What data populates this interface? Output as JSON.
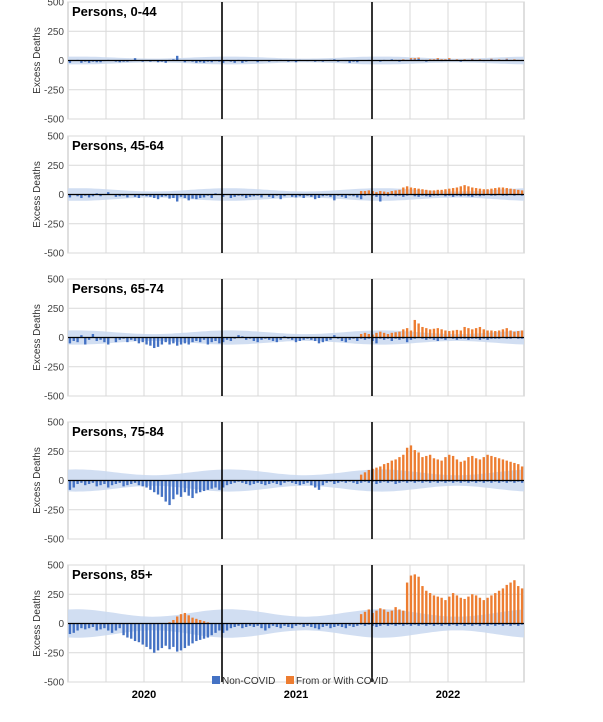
{
  "chart_data": {
    "type": "bar",
    "stacked": true,
    "ylabel": "Excess Deaths",
    "ylim": [
      -500,
      500
    ],
    "yticks": [
      -500,
      -250,
      0,
      250,
      500
    ],
    "x_years": [
      "2020",
      "2021",
      "2022"
    ],
    "grid": true,
    "legend_position": "bottom-center",
    "colors": {
      "non_covid": "#4472c4",
      "covid": "#ed7d31",
      "band": "#c9d8f0",
      "grid": "#d9d9d9"
    },
    "legend": [
      "Non-COVID",
      "From or With COVID"
    ],
    "weeks": 119,
    "panels": [
      {
        "title": "Persons, 0-44",
        "non_covid": [
          -20,
          0,
          5,
          -20,
          -10,
          -20,
          -10,
          -15,
          -15,
          -5,
          5,
          0,
          -10,
          -15,
          -10,
          -10,
          -5,
          20,
          0,
          -10,
          0,
          -10,
          -5,
          -15,
          -10,
          -20,
          5,
          10,
          40,
          0,
          -15,
          -5,
          -10,
          -20,
          -15,
          -20,
          -10,
          -15,
          -5,
          -10,
          -20,
          5,
          -10,
          -20,
          5,
          -20,
          -10,
          0,
          0,
          -15,
          -5,
          0,
          -10,
          0,
          -5,
          5,
          0,
          -10,
          -5,
          -15,
          5,
          0,
          -5,
          0,
          -10,
          -5,
          -10,
          0,
          5,
          10,
          -10,
          0,
          -5,
          -20,
          -10,
          -15,
          0,
          0,
          5,
          -5,
          0,
          -10,
          5,
          0,
          10,
          0,
          -10,
          5,
          0,
          10,
          10,
          15,
          0,
          -10,
          5,
          0,
          10,
          -5,
          0,
          10,
          0,
          5,
          -10,
          5,
          0,
          10,
          0,
          5,
          -5,
          0,
          10,
          0,
          5,
          0,
          10,
          0,
          5,
          0,
          0
        ],
        "covid": [
          0,
          0,
          0,
          0,
          0,
          0,
          0,
          0,
          0,
          0,
          0,
          0,
          0,
          0,
          0,
          0,
          0,
          0,
          0,
          0,
          0,
          0,
          0,
          0,
          0,
          0,
          0,
          0,
          0,
          0,
          0,
          0,
          0,
          0,
          0,
          0,
          0,
          0,
          0,
          0,
          0,
          0,
          0,
          0,
          0,
          0,
          0,
          0,
          0,
          0,
          0,
          0,
          0,
          0,
          0,
          0,
          0,
          0,
          0,
          0,
          0,
          0,
          0,
          0,
          0,
          0,
          0,
          0,
          0,
          0,
          0,
          0,
          0,
          0,
          0,
          0,
          0,
          0,
          0,
          0,
          0,
          0,
          0,
          0,
          0,
          5,
          5,
          5,
          5,
          10,
          10,
          10,
          5,
          5,
          5,
          10,
          10,
          10,
          10,
          10,
          5,
          5,
          5,
          5,
          5,
          5,
          5,
          5,
          5,
          5,
          5,
          5,
          5,
          5,
          5,
          5,
          5,
          5,
          5
        ],
        "band_half_width": 25
      },
      {
        "title": "Persons, 45-64",
        "non_covid": [
          -25,
          -5,
          -15,
          -30,
          -10,
          -25,
          -15,
          10,
          -15,
          -5,
          20,
          0,
          -20,
          -15,
          -10,
          -25,
          -5,
          -20,
          -30,
          -10,
          -15,
          -20,
          -30,
          -40,
          -20,
          -15,
          -35,
          -30,
          -60,
          -20,
          -30,
          -50,
          -35,
          -40,
          -30,
          -25,
          -10,
          -30,
          10,
          5,
          -20,
          -5,
          -30,
          -20,
          -10,
          -15,
          -30,
          -20,
          -15,
          -10,
          -25,
          0,
          -20,
          -30,
          -10,
          -40,
          -15,
          5,
          -20,
          -25,
          -15,
          -30,
          -10,
          -20,
          -40,
          -30,
          -15,
          -10,
          -20,
          -50,
          -10,
          -20,
          -30,
          -10,
          -15,
          -25,
          -40,
          -10,
          -5,
          -10,
          -20,
          -60,
          -10,
          -15,
          -5,
          -15,
          -10,
          -20,
          -10,
          -5,
          -15,
          -20,
          -10,
          -15,
          -20,
          -10,
          -10,
          -5,
          -15,
          -10,
          -20,
          -10,
          -15,
          -10,
          -15,
          -20,
          -10,
          -15,
          -10,
          -5,
          -10,
          -10,
          -5,
          -10,
          -10,
          -5,
          -10,
          -5,
          -10
        ],
        "covid": [
          0,
          0,
          0,
          0,
          0,
          0,
          0,
          0,
          0,
          0,
          0,
          0,
          0,
          0,
          0,
          0,
          0,
          0,
          0,
          0,
          0,
          0,
          0,
          0,
          0,
          0,
          0,
          0,
          0,
          0,
          0,
          0,
          0,
          0,
          0,
          0,
          0,
          0,
          0,
          0,
          0,
          0,
          0,
          0,
          0,
          0,
          0,
          0,
          0,
          0,
          0,
          0,
          0,
          0,
          0,
          0,
          0,
          0,
          0,
          0,
          0,
          0,
          0,
          0,
          0,
          0,
          0,
          0,
          0,
          0,
          0,
          0,
          0,
          0,
          0,
          0,
          30,
          30,
          35,
          30,
          20,
          30,
          25,
          20,
          30,
          35,
          40,
          60,
          70,
          60,
          55,
          50,
          45,
          40,
          35,
          35,
          40,
          40,
          45,
          50,
          55,
          60,
          70,
          80,
          70,
          60,
          55,
          50,
          45,
          45,
          50,
          55,
          60,
          60,
          55,
          50,
          45,
          40,
          35
        ],
        "band_half_width": 40
      },
      {
        "title": "Persons, 65-74",
        "non_covid": [
          -50,
          -30,
          -40,
          20,
          -60,
          -20,
          30,
          -30,
          -20,
          -40,
          -60,
          0,
          -40,
          -20,
          -10,
          -40,
          -20,
          -30,
          -50,
          -40,
          -60,
          -70,
          -90,
          -80,
          -60,
          -40,
          -60,
          -50,
          -70,
          -60,
          -50,
          -60,
          -40,
          -30,
          -40,
          -20,
          -60,
          -40,
          -30,
          -50,
          -40,
          -20,
          -30,
          -10,
          20,
          10,
          -20,
          -10,
          -30,
          -40,
          -20,
          -10,
          -20,
          -30,
          -40,
          -20,
          10,
          -10,
          -20,
          -40,
          -30,
          -20,
          -10,
          -20,
          -30,
          -50,
          -40,
          -30,
          -20,
          20,
          -10,
          -30,
          -40,
          -20,
          -10,
          -30,
          -10,
          -20,
          -10,
          -30,
          -50,
          -10,
          -20,
          -10,
          -30,
          -10,
          -20,
          -10,
          -40,
          -20,
          -10,
          -5,
          -10,
          -20,
          -10,
          -20,
          -30,
          -10,
          -20,
          -5,
          -10,
          -20,
          -10,
          -10,
          -20,
          -10,
          -10,
          -20,
          -10,
          -20,
          -10,
          -10,
          -10,
          -5,
          -10,
          -10,
          -5,
          -10,
          -10
        ],
        "covid": [
          0,
          0,
          0,
          0,
          0,
          0,
          0,
          0,
          0,
          0,
          0,
          0,
          0,
          0,
          0,
          0,
          0,
          0,
          0,
          0,
          0,
          0,
          0,
          0,
          0,
          0,
          0,
          0,
          0,
          0,
          0,
          0,
          0,
          0,
          0,
          0,
          0,
          0,
          0,
          0,
          0,
          0,
          0,
          0,
          0,
          0,
          0,
          0,
          0,
          0,
          0,
          0,
          0,
          0,
          0,
          0,
          0,
          0,
          0,
          0,
          0,
          0,
          0,
          0,
          0,
          0,
          0,
          0,
          0,
          0,
          0,
          0,
          0,
          0,
          0,
          0,
          30,
          40,
          30,
          25,
          40,
          50,
          40,
          30,
          40,
          45,
          50,
          70,
          80,
          60,
          150,
          120,
          90,
          80,
          70,
          75,
          80,
          70,
          60,
          55,
          60,
          65,
          60,
          90,
          80,
          70,
          80,
          90,
          70,
          60,
          60,
          55,
          60,
          70,
          80,
          60,
          50,
          55,
          60
        ],
        "band_half_width": 45
      },
      {
        "title": "Persons, 75-84",
        "non_covid": [
          -80,
          -60,
          -30,
          -20,
          -40,
          -30,
          -20,
          -50,
          -40,
          -30,
          -60,
          -40,
          -30,
          -20,
          -50,
          -40,
          -30,
          -20,
          -40,
          -50,
          -60,
          -80,
          -100,
          -120,
          -140,
          -180,
          -210,
          -160,
          -120,
          -140,
          -100,
          -130,
          -150,
          -110,
          -100,
          -90,
          -80,
          -70,
          -60,
          -80,
          -60,
          -40,
          -30,
          -20,
          -10,
          -20,
          -30,
          -40,
          -30,
          -20,
          -30,
          -40,
          -30,
          -20,
          -30,
          -40,
          -20,
          -10,
          -20,
          -30,
          -40,
          -30,
          -20,
          -40,
          -60,
          -80,
          -40,
          -20,
          -10,
          -30,
          -20,
          -10,
          -20,
          -10,
          -20,
          -30,
          -20,
          -10,
          -20,
          -10,
          -30,
          -20,
          -10,
          -20,
          -10,
          -30,
          -20,
          -10,
          -20,
          -10,
          -20,
          -10,
          -20,
          -10,
          -20,
          -10,
          -20,
          -10,
          -20,
          -10,
          -20,
          -10,
          -20,
          -10,
          -20,
          -10,
          -20,
          -10,
          -20,
          -10,
          -20,
          -10,
          -20,
          -10,
          -20,
          -10,
          -20,
          -10,
          -20
        ],
        "covid": [
          0,
          0,
          0,
          0,
          0,
          0,
          0,
          0,
          0,
          0,
          0,
          0,
          0,
          0,
          0,
          0,
          0,
          0,
          0,
          0,
          0,
          0,
          0,
          0,
          0,
          0,
          0,
          0,
          0,
          0,
          0,
          0,
          0,
          0,
          0,
          0,
          0,
          0,
          0,
          0,
          0,
          0,
          0,
          0,
          0,
          0,
          0,
          0,
          0,
          0,
          0,
          0,
          0,
          0,
          0,
          0,
          0,
          0,
          0,
          0,
          0,
          0,
          0,
          0,
          0,
          0,
          0,
          0,
          0,
          0,
          0,
          0,
          0,
          0,
          0,
          0,
          50,
          70,
          90,
          100,
          110,
          120,
          140,
          150,
          170,
          180,
          200,
          220,
          280,
          300,
          260,
          240,
          200,
          210,
          220,
          190,
          180,
          170,
          200,
          220,
          210,
          180,
          160,
          170,
          200,
          210,
          190,
          180,
          200,
          220,
          210,
          200,
          190,
          180,
          170,
          160,
          150,
          140,
          120
        ],
        "band_half_width": 70
      },
      {
        "title": "Persons, 85+",
        "non_covid": [
          -90,
          -80,
          -60,
          -40,
          -50,
          -40,
          -30,
          -60,
          -50,
          -40,
          -60,
          -80,
          -60,
          -40,
          -100,
          -120,
          -130,
          -150,
          -160,
          -180,
          -200,
          -220,
          -250,
          -230,
          -210,
          -190,
          -220,
          -200,
          -240,
          -230,
          -210,
          -190,
          -170,
          -150,
          -140,
          -130,
          -120,
          -100,
          -80,
          -60,
          -80,
          -60,
          -40,
          -30,
          -20,
          -40,
          -30,
          -20,
          -30,
          -20,
          -40,
          -60,
          -40,
          -20,
          -30,
          -40,
          -20,
          -30,
          -40,
          -20,
          -10,
          -30,
          -20,
          -30,
          -40,
          -50,
          -30,
          -20,
          -40,
          -30,
          -20,
          -30,
          -40,
          -20,
          -30,
          -20,
          -10,
          -20,
          -10,
          -20,
          -30,
          -20,
          -10,
          -20,
          -10,
          -20,
          -10,
          -20,
          -10,
          -20,
          -10,
          -20,
          -10,
          -20,
          -10,
          -20,
          -10,
          -20,
          -10,
          -20,
          -10,
          -20,
          -10,
          -20,
          -10,
          -20,
          -10,
          -20,
          -10,
          -20,
          -10,
          -20,
          -10,
          -20,
          -10,
          -20,
          -10,
          -20,
          -10
        ],
        "covid": [
          0,
          0,
          0,
          0,
          0,
          0,
          0,
          0,
          0,
          0,
          0,
          0,
          0,
          0,
          0,
          0,
          0,
          0,
          0,
          0,
          0,
          0,
          0,
          0,
          0,
          0,
          10,
          30,
          60,
          80,
          90,
          70,
          50,
          40,
          30,
          20,
          10,
          0,
          0,
          0,
          0,
          0,
          0,
          0,
          0,
          0,
          0,
          0,
          0,
          0,
          0,
          0,
          0,
          0,
          0,
          0,
          0,
          0,
          0,
          0,
          0,
          0,
          0,
          0,
          0,
          0,
          0,
          0,
          0,
          0,
          0,
          0,
          0,
          0,
          0,
          0,
          80,
          100,
          120,
          90,
          110,
          130,
          120,
          100,
          110,
          140,
          120,
          110,
          350,
          410,
          420,
          400,
          320,
          280,
          260,
          240,
          230,
          220,
          200,
          230,
          260,
          240,
          220,
          210,
          230,
          250,
          240,
          220,
          200,
          220,
          240,
          260,
          280,
          300,
          330,
          350,
          370,
          320,
          300
        ],
        "band_half_width": 90
      }
    ]
  }
}
